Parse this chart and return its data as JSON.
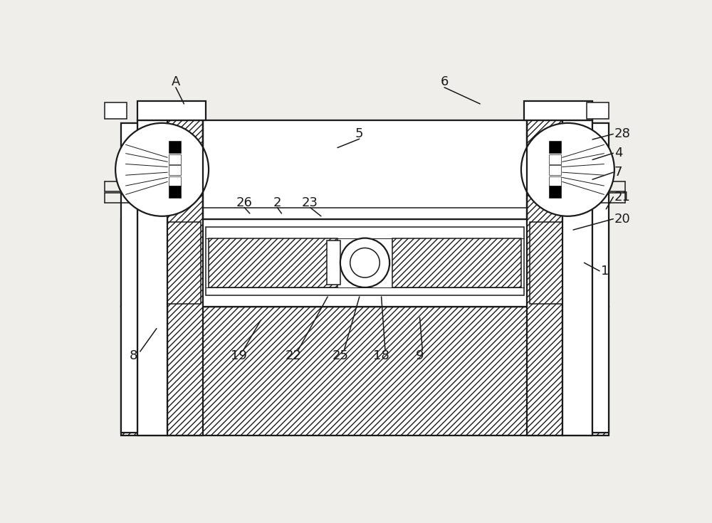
{
  "bg_color": "#f0eeeb",
  "line_color": "#1a1a1a",
  "lw_main": 1.6,
  "lw_med": 1.1,
  "lw_thin": 0.7,
  "label_fs": 13
}
